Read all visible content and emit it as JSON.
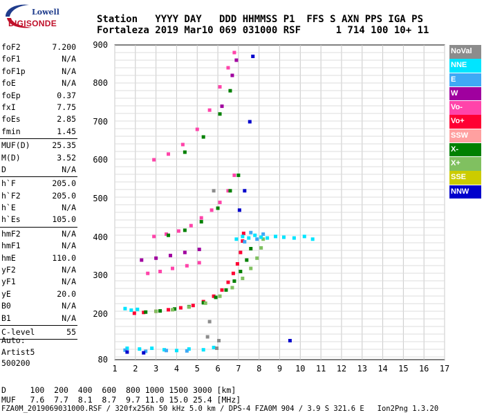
{
  "logo": {
    "line1": "Lowell",
    "line2": "DIGISONDE"
  },
  "header": {
    "line1": "Station   YYYY DAY   DDD HHMMSS P1  FFS S AXN PPS IGA PS",
    "line2": "Fortaleza 2019 Mar10 069 031000 RSF      1 714 100 10+ 11"
  },
  "params": [
    {
      "label": "foF2",
      "value": "7.200",
      "sep_after": false
    },
    {
      "label": "foF1",
      "value": "N/A",
      "sep_after": false
    },
    {
      "label": "foF1p",
      "value": "N/A",
      "sep_after": false
    },
    {
      "label": "foE",
      "value": "N/A",
      "sep_after": false
    },
    {
      "label": "foEp",
      "value": "0.37",
      "sep_after": false
    },
    {
      "label": "fxI",
      "value": "7.75",
      "sep_after": false
    },
    {
      "label": "foEs",
      "value": "2.85",
      "sep_after": false
    },
    {
      "label": "fmin",
      "value": "1.45",
      "sep_after": true
    },
    {
      "label": "MUF(D)",
      "value": "25.35",
      "sep_after": false
    },
    {
      "label": "M(D)",
      "value": "3.52",
      "sep_after": false
    },
    {
      "label": "D",
      "value": "N/A",
      "sep_after": true
    },
    {
      "label": "h`F",
      "value": "205.0",
      "sep_after": false
    },
    {
      "label": "h`F2",
      "value": "205.0",
      "sep_after": false
    },
    {
      "label": "h`E",
      "value": "N/A",
      "sep_after": false
    },
    {
      "label": "h`Es",
      "value": "105.0",
      "sep_after": true
    },
    {
      "label": "hmF2",
      "value": "N/A",
      "sep_after": false
    },
    {
      "label": "hmF1",
      "value": "N/A",
      "sep_after": false
    },
    {
      "label": "hmE",
      "value": "110.0",
      "sep_after": false
    },
    {
      "label": "yF2",
      "value": "N/A",
      "sep_after": false
    },
    {
      "label": "yF1",
      "value": "N/A",
      "sep_after": false
    },
    {
      "label": "yE",
      "value": "20.0",
      "sep_after": false
    },
    {
      "label": "B0",
      "value": "N/A",
      "sep_after": false
    },
    {
      "label": "B1",
      "value": "N/A",
      "sep_after": true
    },
    {
      "label": "C-level",
      "value": "55",
      "sep_after": true
    }
  ],
  "auto": {
    "line1": "Auto:",
    "line2": "Artist5",
    "line3": "500200"
  },
  "legend": [
    {
      "label": "NoVal",
      "color": "#8c8c8c"
    },
    {
      "label": "NNE",
      "color": "#00e5ff"
    },
    {
      "label": "E",
      "color": "#3fa9f5"
    },
    {
      "label": "W",
      "color": "#a0009f"
    },
    {
      "label": "Vo-",
      "color": "#ff44aa"
    },
    {
      "label": "Vo+",
      "color": "#ff0033"
    },
    {
      "label": "SSW",
      "color": "#ffa0a0"
    },
    {
      "label": "X-",
      "color": "#008000"
    },
    {
      "label": "X+",
      "color": "#80c060"
    },
    {
      "label": "SSE",
      "color": "#cccc00"
    },
    {
      "label": "NNW",
      "color": "#0000cc"
    }
  ],
  "bottom": {
    "line1": "D     100  200  400  600  800 1000 1500 3000 [km]",
    "line2": "MUF   7.6  7.7  8.1  8.7  9.7 11.0 15.0 25.4 [MHz]"
  },
  "footer": "FZA0M_2019069031000.RSF / 320fx256h 50 kHz 5.0 km / DPS-4 FZA0M 904 / 3.9 S 321.6 E   Ion2Png 1.3.20",
  "chart_data": {
    "type": "scatter",
    "title": "",
    "xlabel": "",
    "ylabel": "",
    "xlim": [
      1,
      17
    ],
    "ylim": [
      80,
      900
    ],
    "x_ticks": [
      1,
      2,
      3,
      4,
      5,
      6,
      7,
      8,
      9,
      10,
      11,
      12,
      13,
      14,
      15,
      16,
      17
    ],
    "y_ticks": [
      80,
      200,
      300,
      400,
      500,
      600,
      700,
      800,
      900
    ],
    "grid": true,
    "legend_position": "right",
    "series": [
      {
        "name": "Vo+",
        "color": "#ff0033",
        "points": [
          [
            1.95,
            202
          ],
          [
            2.4,
            204
          ],
          [
            3.0,
            207
          ],
          [
            3.6,
            211
          ],
          [
            4.2,
            216
          ],
          [
            4.8,
            222
          ],
          [
            5.3,
            232
          ],
          [
            5.8,
            246
          ],
          [
            6.2,
            262
          ],
          [
            6.5,
            282
          ],
          [
            6.75,
            305
          ],
          [
            6.95,
            330
          ],
          [
            7.1,
            360
          ],
          [
            7.2,
            390
          ],
          [
            7.25,
            410
          ]
        ]
      },
      {
        "name": "Vo-",
        "color": "#ff44aa",
        "points": [
          [
            2.9,
            402
          ],
          [
            3.5,
            408
          ],
          [
            4.1,
            416
          ],
          [
            4.7,
            430
          ],
          [
            5.2,
            450
          ],
          [
            5.7,
            470
          ],
          [
            6.1,
            490
          ],
          [
            6.5,
            520
          ],
          [
            6.8,
            560
          ],
          [
            2.6,
            305
          ],
          [
            3.2,
            310
          ],
          [
            3.8,
            318
          ],
          [
            4.5,
            325
          ],
          [
            5.1,
            333
          ],
          [
            2.9,
            600
          ],
          [
            3.6,
            615
          ],
          [
            4.3,
            640
          ],
          [
            5.0,
            680
          ],
          [
            5.6,
            730
          ],
          [
            6.1,
            790
          ],
          [
            6.5,
            840
          ],
          [
            6.8,
            880
          ]
        ]
      },
      {
        "name": "X-",
        "color": "#008000",
        "points": [
          [
            2.5,
            205
          ],
          [
            3.2,
            208
          ],
          [
            3.9,
            213
          ],
          [
            4.6,
            219
          ],
          [
            5.3,
            229
          ],
          [
            5.9,
            243
          ],
          [
            6.4,
            262
          ],
          [
            6.8,
            285
          ],
          [
            7.1,
            310
          ],
          [
            7.4,
            340
          ],
          [
            7.6,
            370
          ],
          [
            3.6,
            405
          ],
          [
            4.4,
            418
          ],
          [
            5.2,
            440
          ],
          [
            6.0,
            475
          ],
          [
            6.6,
            520
          ],
          [
            7.0,
            560
          ],
          [
            4.4,
            620
          ],
          [
            5.3,
            660
          ],
          [
            6.1,
            720
          ],
          [
            6.6,
            780
          ]
        ]
      },
      {
        "name": "X+",
        "color": "#80c060",
        "points": [
          [
            3.0,
            207
          ],
          [
            3.8,
            211
          ],
          [
            4.6,
            218
          ],
          [
            5.4,
            228
          ],
          [
            6.1,
            246
          ],
          [
            6.7,
            268
          ],
          [
            7.2,
            292
          ],
          [
            7.6,
            318
          ],
          [
            7.9,
            345
          ],
          [
            8.1,
            372
          ],
          [
            8.2,
            395
          ]
        ]
      },
      {
        "name": "NNE",
        "color": "#00e5ff",
        "points": [
          [
            6.9,
            395
          ],
          [
            7.2,
            402
          ],
          [
            7.5,
            398
          ],
          [
            7.8,
            405
          ],
          [
            8.1,
            400
          ],
          [
            8.4,
            398
          ],
          [
            8.8,
            402
          ],
          [
            9.2,
            400
          ],
          [
            9.7,
            398
          ],
          [
            10.2,
            402
          ],
          [
            10.6,
            395
          ],
          [
            1.5,
            214
          ],
          [
            1.8,
            210
          ],
          [
            2.1,
            212
          ],
          [
            1.6,
            110
          ],
          [
            2.2,
            108
          ],
          [
            2.8,
            110
          ],
          [
            3.4,
            106
          ],
          [
            4.0,
            104
          ],
          [
            4.6,
            108
          ],
          [
            5.3,
            106
          ],
          [
            5.8,
            112
          ]
        ]
      },
      {
        "name": "E",
        "color": "#3fa9f5",
        "points": [
          [
            7.3,
            388
          ],
          [
            7.6,
            412
          ],
          [
            7.9,
            395
          ],
          [
            8.2,
            408
          ],
          [
            1.5,
            105
          ],
          [
            2.5,
            102
          ],
          [
            3.5,
            104
          ],
          [
            4.5,
            103
          ]
        ]
      },
      {
        "name": "W",
        "color": "#a0009f",
        "points": [
          [
            2.3,
            340
          ],
          [
            3.0,
            345
          ],
          [
            3.7,
            352
          ],
          [
            4.4,
            360
          ],
          [
            5.1,
            368
          ],
          [
            6.2,
            740
          ],
          [
            6.7,
            820
          ],
          [
            6.9,
            860
          ]
        ]
      },
      {
        "name": "NNW",
        "color": "#0000cc",
        "points": [
          [
            7.05,
            470
          ],
          [
            7.3,
            520
          ],
          [
            7.55,
            700
          ],
          [
            7.7,
            870
          ],
          [
            9.5,
            130
          ],
          [
            1.6,
            100
          ],
          [
            2.4,
            98
          ]
        ]
      },
      {
        "name": "NoVal",
        "color": "#8c8c8c",
        "points": [
          [
            5.5,
            140
          ],
          [
            5.6,
            180
          ],
          [
            5.8,
            520
          ],
          [
            5.95,
            110
          ],
          [
            6.05,
            130
          ]
        ]
      }
    ]
  }
}
